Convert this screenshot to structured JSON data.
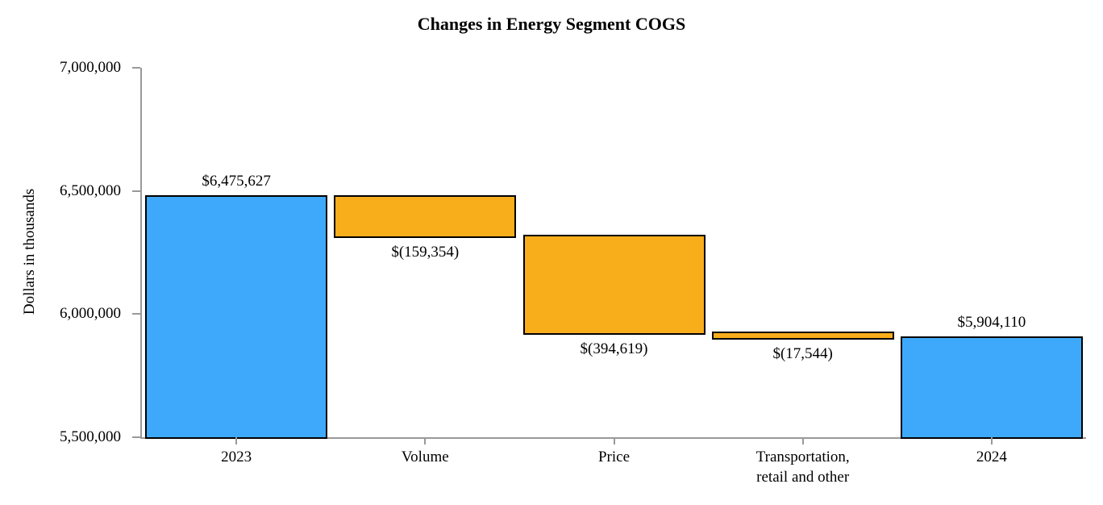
{
  "chart_data": {
    "type": "bar",
    "subtype": "waterfall",
    "title": "Changes in Energy Segment COGS",
    "ylabel": "Dollars in thousands",
    "xlabel": "",
    "ylim": [
      5500000,
      7000000
    ],
    "grid": false,
    "legend": null,
    "yticks": [
      {
        "value": 5500000,
        "label": "5,500,000"
      },
      {
        "value": 6000000,
        "label": "6,000,000"
      },
      {
        "value": 6500000,
        "label": "6,500,000"
      },
      {
        "value": 7000000,
        "label": "7,000,000"
      }
    ],
    "categories": [
      "2023",
      "Volume",
      "Price",
      "Transportation,\nretail and other",
      "2024"
    ],
    "bars": [
      {
        "category": "2023",
        "role": "total",
        "value": 6475627,
        "start": 5500000,
        "end": 6475627,
        "label": "$6,475,627",
        "label_position": "above"
      },
      {
        "category": "Volume",
        "role": "decrease",
        "value": -159354,
        "start": 6475627,
        "end": 6316273,
        "label": "$(159,354)",
        "label_position": "below"
      },
      {
        "category": "Price",
        "role": "decrease",
        "value": -394619,
        "start": 6316273,
        "end": 5921654,
        "label": "$(394,619)",
        "label_position": "below"
      },
      {
        "category": "Transportation,\nretail and other",
        "role": "decrease",
        "value": -17544,
        "start": 5921654,
        "end": 5904110,
        "label": "$(17,544)",
        "label_position": "below"
      },
      {
        "category": "2024",
        "role": "total",
        "value": 5904110,
        "start": 5500000,
        "end": 5904110,
        "label": "$5,904,110",
        "label_position": "above"
      }
    ],
    "colors": {
      "total_bar": "#3EA9FA",
      "change_bar": "#F8AD1B",
      "bar_border": "#000000",
      "axis": "#999999",
      "text": "#000000"
    }
  }
}
